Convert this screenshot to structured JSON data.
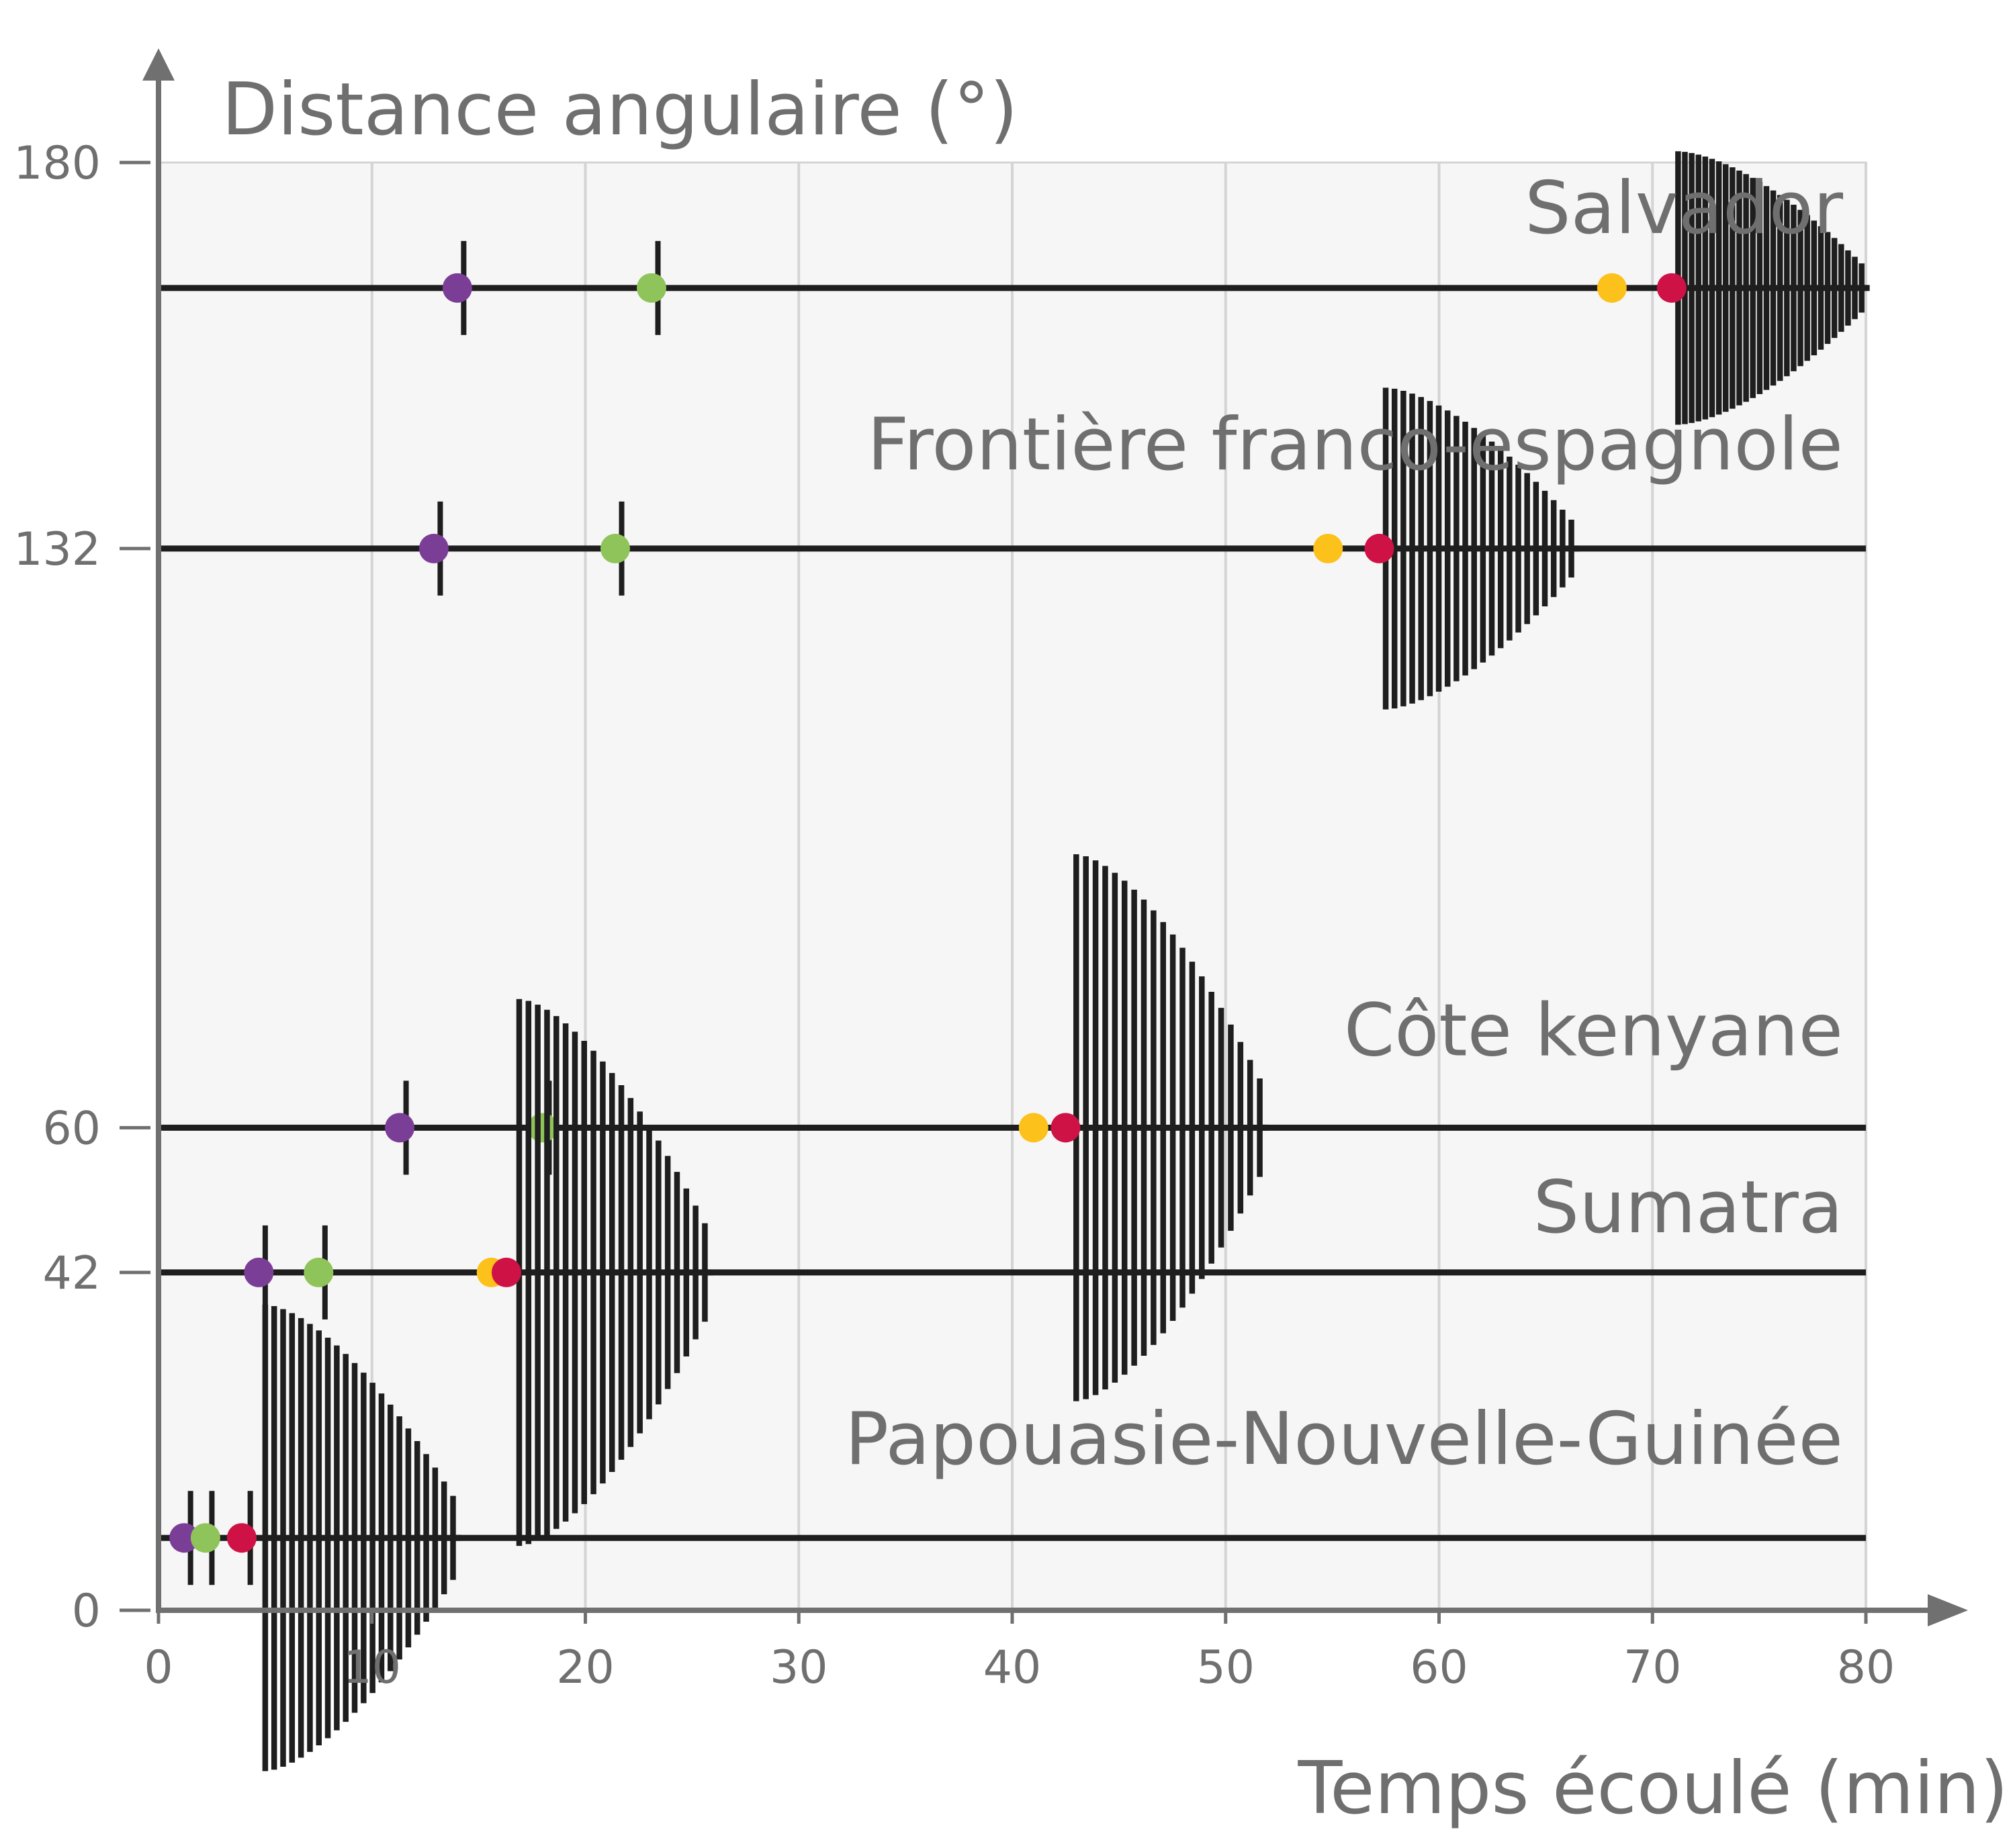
{
  "chart_data": {
    "type": "scatter",
    "title": "",
    "xlabel": "Temps écoulé (min)",
    "ylabel": "Distance angulaire (°)",
    "xlim": [
      0,
      80
    ],
    "ylim": [
      0,
      180
    ],
    "x_ticks": [
      "0",
      "10",
      "20",
      "30",
      "40",
      "50",
      "60",
      "70",
      "80"
    ],
    "y_ticks": [
      {
        "value": 0,
        "label": "0"
      },
      {
        "value": 42,
        "label": "42"
      },
      {
        "value": 60,
        "label": "60"
      },
      {
        "value": 132,
        "label": "132"
      },
      {
        "value": 180,
        "label": "180"
      }
    ],
    "grid": "vertical",
    "colors": {
      "plot_background": "#f6f6f6",
      "grid": "#d4d4d4",
      "axis": "#707070",
      "trace": "#1e1e1e",
      "text": "#6f6f6f",
      "phase_purple": "#7b3e96",
      "phase_green": "#8fc45a",
      "phase_yellow": "#fcc11a",
      "phase_red": "#cf1245"
    },
    "stations": [
      {
        "name": "Salvador",
        "distance": 164.4,
        "phases": {
          "purple": 14.0,
          "green": 23.1,
          "yellow": 68.1,
          "red": 70.9
        },
        "onset_ticks": [
          14.3,
          23.4
        ],
        "waves_start": 71.2,
        "waves_end": 79.8,
        "waves_amp_max": 17,
        "waves_count": 28
      },
      {
        "name": "Frontière franco-espagnole",
        "distance": 132,
        "phases": {
          "purple": 12.9,
          "green": 21.4,
          "yellow": 54.8,
          "red": 57.2
        },
        "onset_ticks": [
          13.2,
          21.7
        ],
        "waves_start": 57.5,
        "waves_end": 66.2,
        "waves_amp_max": 20,
        "waves_count": 22
      },
      {
        "name": "Côte kenyane",
        "distance": 60,
        "phases": {
          "purple": 11.3,
          "green": 18.0,
          "yellow": 41.0,
          "red": 42.5
        },
        "onset_ticks": [
          11.6,
          18.3
        ],
        "waves_start": 43.0,
        "waves_end": 51.6,
        "waves_amp_max": 34,
        "waves_count": 20
      },
      {
        "name": "Sumatra",
        "distance": 42,
        "phases": {
          "purple": 4.7,
          "green": 7.5,
          "yellow": 15.6,
          "red": 16.3
        },
        "onset_ticks": [
          5.0,
          7.8
        ],
        "waves_start": 16.9,
        "waves_end": 25.6,
        "waves_amp_max": 34,
        "waves_count": 21
      },
      {
        "name": "Papouasie-Nouvelle-Guinée",
        "distance": 9,
        "phases": {
          "purple": 1.2,
          "green": 2.2,
          "red": 3.9
        },
        "onset_ticks": [
          1.5,
          2.5,
          4.3
        ],
        "waves_start": 5.0,
        "waves_end": 13.8,
        "waves_amp_max": 29,
        "waves_count": 22
      }
    ]
  }
}
